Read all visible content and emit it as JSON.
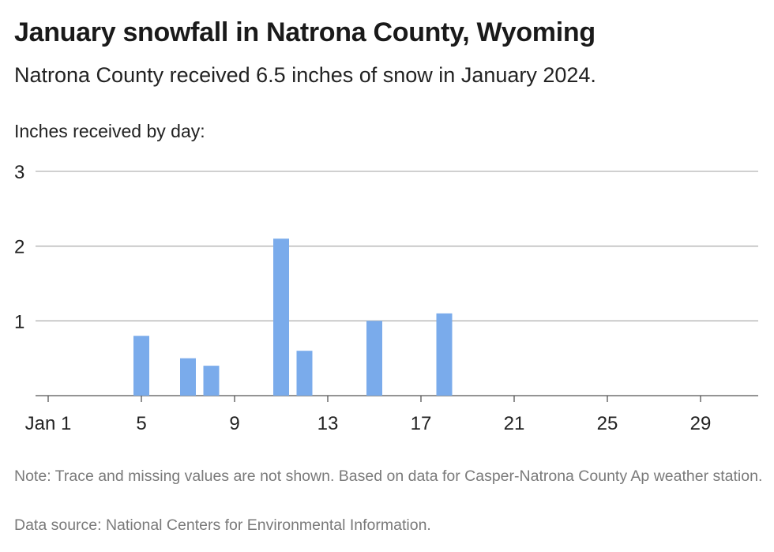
{
  "header": {
    "title": "January snowfall in Natrona County, Wyoming",
    "subtitle": "Natrona County received 6.5 inches of snow in January 2024.",
    "ylabel": "Inches received by day:"
  },
  "footer": {
    "note": "Note: Trace and missing values are not shown. Based on data for Casper-Natrona County Ap weather station.",
    "source": "Data source: National Centers for Environmental Information."
  },
  "chart_data": {
    "type": "bar",
    "title": "January snowfall in Natrona County, Wyoming",
    "subtitle": "Natrona County received 6.5 inches of snow in January 2024.",
    "ylabel": "Inches received by day:",
    "xlabel": "",
    "x_range": [
      1,
      31
    ],
    "ylim": [
      0,
      3
    ],
    "y_ticks": [
      1,
      2,
      3
    ],
    "x_ticks": [
      {
        "day": 1,
        "label": "Jan 1"
      },
      {
        "day": 5,
        "label": "5"
      },
      {
        "day": 9,
        "label": "9"
      },
      {
        "day": 13,
        "label": "13"
      },
      {
        "day": 17,
        "label": "17"
      },
      {
        "day": 21,
        "label": "21"
      },
      {
        "day": 25,
        "label": "25"
      },
      {
        "day": 29,
        "label": "29"
      }
    ],
    "grid": true,
    "legend": "none",
    "bar_color": "#7aabeb",
    "series": [
      {
        "points": [
          {
            "day": 5,
            "value": 0.8
          },
          {
            "day": 7,
            "value": 0.5
          },
          {
            "day": 8,
            "value": 0.4
          },
          {
            "day": 11,
            "value": 2.1
          },
          {
            "day": 12,
            "value": 0.6
          },
          {
            "day": 15,
            "value": 1.0
          },
          {
            "day": 18,
            "value": 1.1
          }
        ]
      }
    ]
  }
}
